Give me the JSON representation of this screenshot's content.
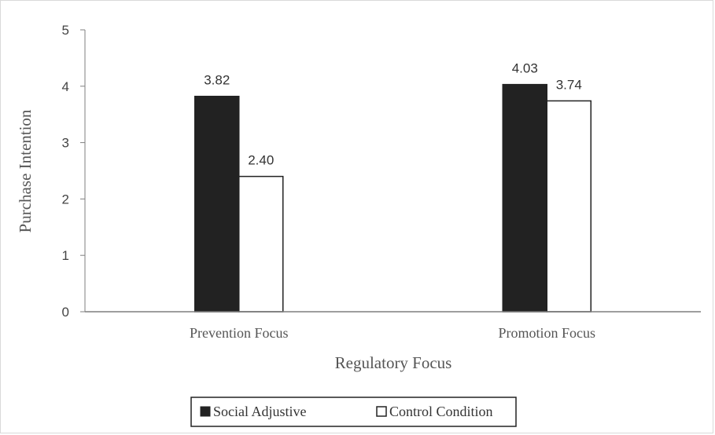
{
  "chart_data": {
    "type": "bar",
    "categories": [
      "Prevention Focus",
      "Promotion Focus"
    ],
    "series": [
      {
        "name": "Social Adjustive",
        "values": [
          3.82,
          4.03
        ],
        "labels": [
          "3.82",
          "4.03"
        ],
        "color": "#222222"
      },
      {
        "name": "Control Condition",
        "values": [
          2.4,
          3.74
        ],
        "labels": [
          "2.40",
          "3.74"
        ],
        "color": "#ffffff"
      }
    ],
    "title": "",
    "xlabel": "Regulatory Focus",
    "ylabel": "Purchase Intention",
    "ylim": [
      0,
      5
    ],
    "yticks": [
      "0",
      "1",
      "2",
      "3",
      "4",
      "5"
    ],
    "grid": false,
    "legend": "bottom"
  }
}
